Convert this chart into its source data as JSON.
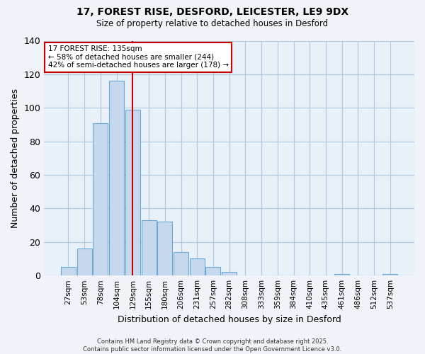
{
  "title1": "17, FOREST RISE, DESFORD, LEICESTER, LE9 9DX",
  "title2": "Size of property relative to detached houses in Desford",
  "xlabel": "Distribution of detached houses by size in Desford",
  "ylabel": "Number of detached properties",
  "bar_labels": [
    "27sqm",
    "53sqm",
    "78sqm",
    "104sqm",
    "129sqm",
    "155sqm",
    "180sqm",
    "206sqm",
    "231sqm",
    "257sqm",
    "282sqm",
    "308sqm",
    "333sqm",
    "359sqm",
    "384sqm",
    "410sqm",
    "435sqm",
    "461sqm",
    "486sqm",
    "512sqm",
    "537sqm"
  ],
  "bar_values": [
    5,
    16,
    91,
    116,
    99,
    33,
    32,
    14,
    10,
    5,
    2,
    0,
    0,
    0,
    0,
    0,
    0,
    1,
    0,
    0,
    1
  ],
  "bar_color": "#c5d8ee",
  "bar_edge_color": "#6aaad4",
  "vline_x": 3.97,
  "vline_color": "#cc0000",
  "ylim": [
    0,
    140
  ],
  "yticks": [
    0,
    20,
    40,
    60,
    80,
    100,
    120,
    140
  ],
  "annotation_title": "17 FOREST RISE: 135sqm",
  "annotation_line1": "← 58% of detached houses are smaller (244)",
  "annotation_line2": "42% of semi-detached houses are larger (178) →",
  "footer1": "Contains HM Land Registry data © Crown copyright and database right 2025.",
  "footer2": "Contains public sector information licensed under the Open Government Licence v3.0.",
  "bg_color": "#f0f4f8",
  "plot_bg_color": "#e8f0f8",
  "grid_color": "#b0c8e0"
}
